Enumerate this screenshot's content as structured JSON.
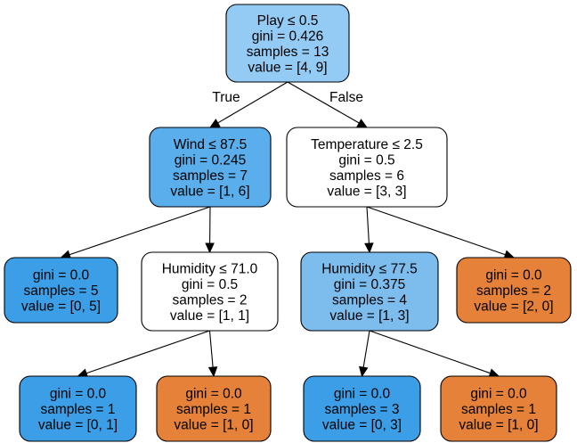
{
  "nodes": {
    "n0": {
      "lines": [
        "Play ≤ 0.5",
        "gini = 0.426",
        "samples = 13",
        "value = [4, 9]"
      ],
      "fill": "#94cbf4"
    },
    "n1": {
      "lines": [
        "Wind ≤ 87.5",
        "gini = 0.245",
        "samples = 7",
        "value = [1, 6]"
      ],
      "fill": "#5aaeeb"
    },
    "n2": {
      "lines": [
        "Temperature ≤ 2.5",
        "gini = 0.5",
        "samples = 6",
        "value = [3, 3]"
      ],
      "fill": "#ffffff"
    },
    "n3": {
      "lines": [
        "gini = 0.0",
        "samples = 5",
        "value = [0, 5]"
      ],
      "fill": "#3b9ee6"
    },
    "n4": {
      "lines": [
        "Humidity ≤ 71.0",
        "gini = 0.5",
        "samples = 2",
        "value = [1, 1]"
      ],
      "fill": "#ffffff"
    },
    "n5": {
      "lines": [
        "Humidity ≤ 77.5",
        "gini = 0.375",
        "samples = 4",
        "value = [1, 3]"
      ],
      "fill": "#7dbdee"
    },
    "n6": {
      "lines": [
        "gini = 0.0",
        "samples = 2",
        "value = [2, 0]"
      ],
      "fill": "#e58139"
    },
    "n7": {
      "lines": [
        "gini = 0.0",
        "samples = 1",
        "value = [0, 1]"
      ],
      "fill": "#3b9ee6"
    },
    "n8": {
      "lines": [
        "gini = 0.0",
        "samples = 1",
        "value = [1, 0]"
      ],
      "fill": "#e58139"
    },
    "n9": {
      "lines": [
        "gini = 0.0",
        "samples = 3",
        "value = [0, 3]"
      ],
      "fill": "#3b9ee6"
    },
    "n10": {
      "lines": [
        "gini = 0.0",
        "samples = 1",
        "value = [1, 0]"
      ],
      "fill": "#e58139"
    }
  },
  "edges": [
    {
      "from": "n0",
      "to": "n1",
      "label": "True"
    },
    {
      "from": "n0",
      "to": "n2",
      "label": "False"
    },
    {
      "from": "n1",
      "to": "n3",
      "label": ""
    },
    {
      "from": "n1",
      "to": "n4",
      "label": ""
    },
    {
      "from": "n2",
      "to": "n5",
      "label": ""
    },
    {
      "from": "n2",
      "to": "n6",
      "label": ""
    },
    {
      "from": "n4",
      "to": "n7",
      "label": ""
    },
    {
      "from": "n4",
      "to": "n8",
      "label": ""
    },
    {
      "from": "n5",
      "to": "n9",
      "label": ""
    },
    {
      "from": "n5",
      "to": "n10",
      "label": ""
    }
  ]
}
